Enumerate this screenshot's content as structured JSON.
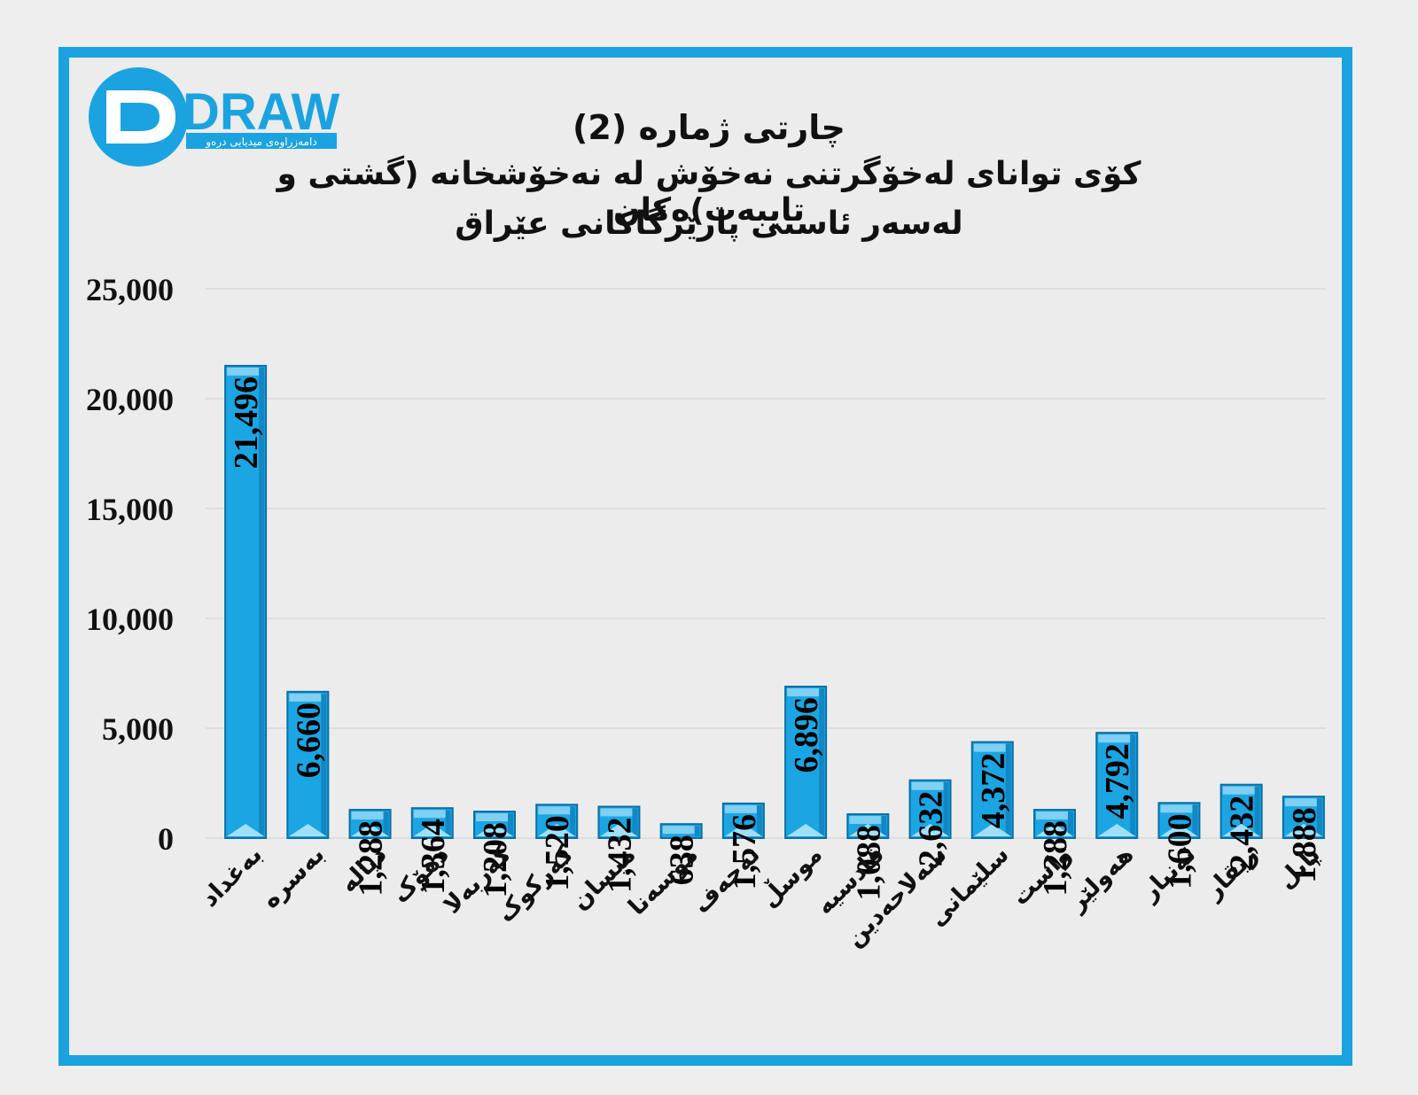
{
  "logo": {
    "brand_text": "DRAW",
    "tagline": "دامەزراوەی میدیایی درەو",
    "colors": {
      "blue": "#1aa3e0",
      "dark": "#0d5a8c"
    }
  },
  "chart_data": {
    "type": "bar",
    "title": "چارتی ژمارە (2)",
    "subtitle": [
      "کۆی توانای لەخۆگرتنی نەخۆش لە نەخۆشخانە (گشتی و تایبەت)ەکان",
      "لەسەر ئاستی پارێزگاکانی عێراق"
    ],
    "xlabel": "",
    "ylabel": "",
    "categories": [
      "بەغداد",
      "بەسرە",
      "دیالە",
      "دهۆک",
      "کەربەلا",
      "کەرکوک",
      "میسان",
      "موسەنا",
      "نەجەف",
      "موسڵ",
      "قادسیە",
      "سەلاحەدین",
      "سلێمانی",
      "واست",
      "هەولێر",
      "ئەنبار",
      "زیقار",
      "بابل"
    ],
    "values": [
      21496,
      6660,
      1288,
      1364,
      1208,
      1520,
      1432,
      638,
      1576,
      6896,
      1088,
      2632,
      4372,
      1288,
      4792,
      1600,
      2432,
      1888
    ],
    "value_labels": [
      "21,496",
      "6,660",
      "1,288",
      "1,364",
      "1,208",
      "1,520",
      "1,432",
      "638",
      "1,576",
      "6,896",
      "1,088",
      "2,632",
      "4,372",
      "1,288",
      "4,792",
      "1,600",
      "2,432",
      "1,888"
    ],
    "ylim": [
      0,
      25000
    ],
    "yticks": [
      0,
      5000,
      10000,
      15000,
      20000,
      25000
    ],
    "ytick_labels": [
      "0",
      "5,000",
      "10,000",
      "15,000",
      "20,000",
      "25,000"
    ],
    "grid": true,
    "legend": "none",
    "colors": {
      "bar": "#1ba6e3",
      "bar_dark": "#0a6fa8",
      "frame": "#1aa3e0",
      "grid": "#d9d9d9"
    }
  }
}
